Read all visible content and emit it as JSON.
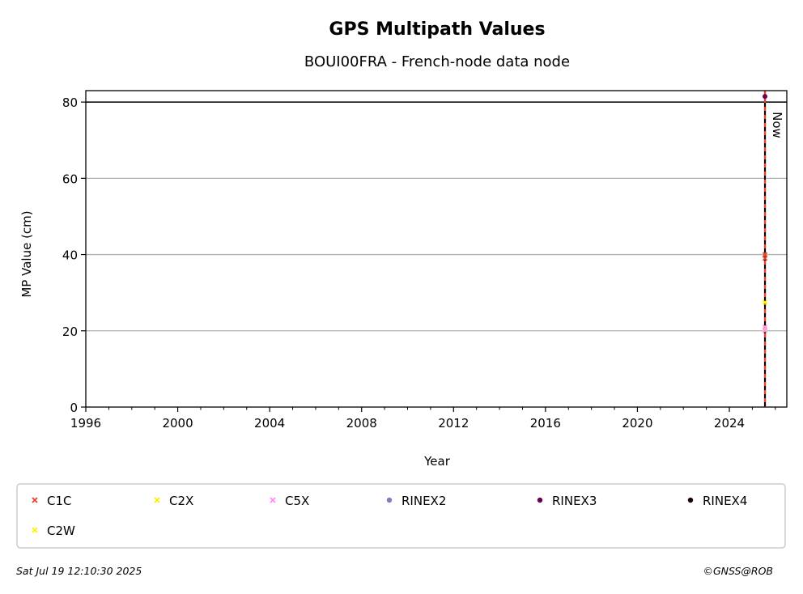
{
  "chart_data": {
    "type": "scatter",
    "title": "GPS Multipath Values",
    "subtitle": "BOUI00FRA - French-node data node",
    "xlabel": "Year",
    "ylabel": "MP Value (cm)",
    "xlim": [
      1996,
      2026.5
    ],
    "ylim": [
      0,
      83
    ],
    "xticks": [
      1996,
      2000,
      2004,
      2008,
      2012,
      2016,
      2020,
      2024
    ],
    "yticks": [
      0,
      20,
      40,
      60,
      80
    ],
    "grid": "horizontal",
    "threshold_line": {
      "value": 80,
      "color": "#000000"
    },
    "now_marker": {
      "x": 2025.55,
      "label": "Now",
      "color": "#000000"
    },
    "series": [
      {
        "name": "C1C",
        "marker": "x",
        "color": "#e8402a",
        "points": [
          [
            2025.55,
            40
          ],
          [
            2025.55,
            39
          ]
        ]
      },
      {
        "name": "C2X",
        "marker": "x",
        "color": "#ffee00",
        "points": [
          [
            2025.55,
            20.5
          ]
        ]
      },
      {
        "name": "C5X",
        "marker": "x",
        "color": "#ff88ff",
        "points": [
          [
            2025.55,
            21
          ],
          [
            2025.55,
            20
          ]
        ]
      },
      {
        "name": "RINEX2",
        "marker": "dot",
        "color": "#8877bb",
        "points": []
      },
      {
        "name": "RINEX3",
        "marker": "dot",
        "color": "#6a0050",
        "points": [
          [
            2025.55,
            81.5
          ]
        ]
      },
      {
        "name": "RINEX4",
        "marker": "dot",
        "color": "#1a0010",
        "points": []
      },
      {
        "name": "C2W",
        "marker": "x",
        "color": "#ffee00",
        "points": [
          [
            2025.55,
            27.5
          ]
        ]
      }
    ],
    "legend_placement": "bottom"
  },
  "footer": {
    "timestamp": "Sat Jul 19 12:10:30 2025",
    "credit": "©GNSS@ROB"
  }
}
